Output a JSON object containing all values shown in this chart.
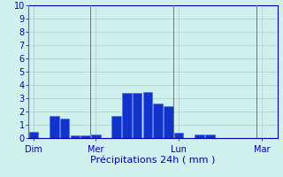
{
  "title": "",
  "xlabel": "Précipitations 24h ( mm )",
  "ylim": [
    0,
    10
  ],
  "yticks": [
    0,
    1,
    2,
    3,
    4,
    5,
    6,
    7,
    8,
    9,
    10
  ],
  "background_color": "#cff0ec",
  "bar_color": "#1133cc",
  "bar_edge_color": "#4466ee",
  "grid_color": "#aacccc",
  "axis_color": "#0000aa",
  "day_labels": [
    "Dim",
    "Mer",
    "Lun",
    "Mar"
  ],
  "day_positions": [
    0,
    6,
    14,
    22
  ],
  "values": [
    0.5,
    0.0,
    1.7,
    1.5,
    0.2,
    0.2,
    0.3,
    0.0,
    1.7,
    3.4,
    3.4,
    3.5,
    2.6,
    2.4,
    0.4,
    0.0,
    0.25,
    0.3,
    0.0,
    0.0,
    0.0,
    0.0,
    0.0,
    0.0
  ],
  "n_bars": 24,
  "xlabel_fontsize": 8,
  "tick_fontsize": 7,
  "label_fontsize": 7,
  "vline_color": "#667788"
}
